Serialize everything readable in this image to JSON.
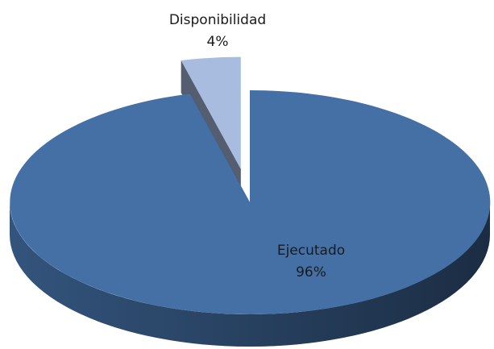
{
  "chart_data": {
    "type": "pie3d",
    "categories": [
      "Ejecutado",
      "Disponibilidad"
    ],
    "values": [
      96,
      4
    ],
    "value_labels": [
      "96%",
      "4%"
    ],
    "colors": [
      "#4470a6",
      "#a8bce0"
    ]
  }
}
